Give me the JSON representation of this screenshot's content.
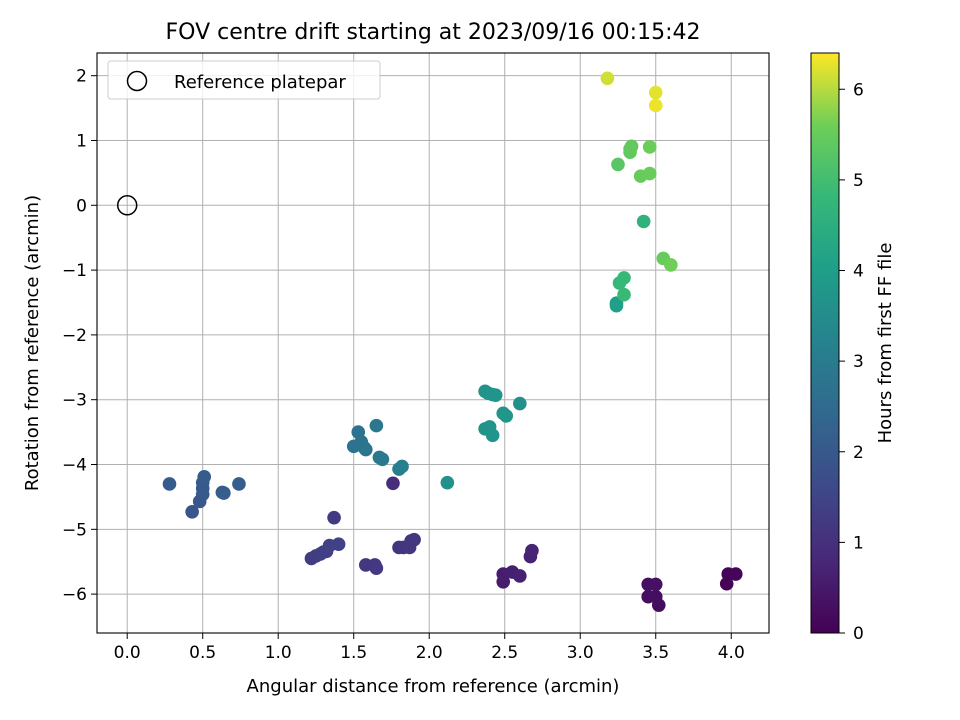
{
  "chart_data": {
    "type": "scatter",
    "title": "FOV centre drift starting at 2023/09/16 00:15:42",
    "xlabel": "Angular distance from reference (arcmin)",
    "ylabel": "Rotation from reference (arcmin)",
    "xlim": [
      -0.2,
      4.25
    ],
    "ylim": [
      -6.6,
      2.35
    ],
    "xticks": [
      "0.0",
      "0.5",
      "1.0",
      "1.5",
      "2.0",
      "2.5",
      "3.0",
      "3.5",
      "4.0"
    ],
    "yticks": [
      "2",
      "1",
      "0",
      "−1",
      "−2",
      "−3",
      "−4",
      "−5",
      "−6"
    ],
    "xtick_values": [
      0,
      0.5,
      1,
      1.5,
      2,
      2.5,
      3,
      3.5,
      4
    ],
    "ytick_values": [
      2,
      1,
      0,
      -1,
      -2,
      -3,
      -4,
      -5,
      -6
    ],
    "grid": true,
    "legend": {
      "placement": "upper-left",
      "entries": [
        "Reference platepar"
      ]
    },
    "reference_point": {
      "x": 0,
      "y": 0
    },
    "colorbar": {
      "label": "Hours from first FF file",
      "range": [
        0,
        6.4
      ],
      "ticks": [
        "0",
        "1",
        "2",
        "3",
        "4",
        "5",
        "6"
      ],
      "tick_values": [
        0,
        1,
        2,
        3,
        4,
        5,
        6
      ],
      "colormap": "viridis"
    },
    "points": [
      {
        "x": 3.97,
        "y": -5.84,
        "h": 0.05
      },
      {
        "x": 3.98,
        "y": -5.69,
        "h": 0.08
      },
      {
        "x": 4.03,
        "y": -5.69,
        "h": 0.1
      },
      {
        "x": 3.52,
        "y": -6.17,
        "h": 0.2
      },
      {
        "x": 3.45,
        "y": -6.04,
        "h": 0.25
      },
      {
        "x": 3.5,
        "y": -6.04,
        "h": 0.28
      },
      {
        "x": 3.45,
        "y": -5.85,
        "h": 0.3
      },
      {
        "x": 3.5,
        "y": -5.85,
        "h": 0.32
      },
      {
        "x": 2.49,
        "y": -5.81,
        "h": 0.55
      },
      {
        "x": 2.49,
        "y": -5.69,
        "h": 0.6
      },
      {
        "x": 2.55,
        "y": -5.66,
        "h": 0.62
      },
      {
        "x": 2.6,
        "y": -5.72,
        "h": 0.65
      },
      {
        "x": 2.67,
        "y": -5.42,
        "h": 0.7
      },
      {
        "x": 2.68,
        "y": -5.33,
        "h": 0.72
      },
      {
        "x": 1.76,
        "y": -4.29,
        "h": 0.95
      },
      {
        "x": 1.8,
        "y": -5.28,
        "h": 1.1
      },
      {
        "x": 1.83,
        "y": -5.28,
        "h": 1.12
      },
      {
        "x": 1.87,
        "y": -5.28,
        "h": 1.14
      },
      {
        "x": 1.88,
        "y": -5.18,
        "h": 1.16
      },
      {
        "x": 1.9,
        "y": -5.16,
        "h": 1.18
      },
      {
        "x": 1.58,
        "y": -5.55,
        "h": 1.15
      },
      {
        "x": 1.64,
        "y": -5.55,
        "h": 1.18
      },
      {
        "x": 1.65,
        "y": -5.6,
        "h": 1.2
      },
      {
        "x": 1.37,
        "y": -4.82,
        "h": 1.25
      },
      {
        "x": 1.22,
        "y": -5.45,
        "h": 1.3
      },
      {
        "x": 1.25,
        "y": -5.41,
        "h": 1.32
      },
      {
        "x": 1.28,
        "y": -5.38,
        "h": 1.34
      },
      {
        "x": 1.3,
        "y": -5.35,
        "h": 1.36
      },
      {
        "x": 1.32,
        "y": -5.34,
        "h": 1.38
      },
      {
        "x": 1.34,
        "y": -5.25,
        "h": 1.4
      },
      {
        "x": 1.4,
        "y": -5.23,
        "h": 1.42
      },
      {
        "x": 0.28,
        "y": -4.3,
        "h": 2.1
      },
      {
        "x": 0.43,
        "y": -4.73,
        "h": 1.9
      },
      {
        "x": 0.48,
        "y": -4.57,
        "h": 1.95
      },
      {
        "x": 0.5,
        "y": -4.46,
        "h": 2.0
      },
      {
        "x": 0.5,
        "y": -4.37,
        "h": 2.02
      },
      {
        "x": 0.5,
        "y": -4.28,
        "h": 2.05
      },
      {
        "x": 0.51,
        "y": -4.19,
        "h": 2.08
      },
      {
        "x": 0.63,
        "y": -4.43,
        "h": 2.1
      },
      {
        "x": 0.64,
        "y": -4.44,
        "h": 2.12
      },
      {
        "x": 0.74,
        "y": -4.3,
        "h": 2.15
      },
      {
        "x": 1.5,
        "y": -3.72,
        "h": 2.7
      },
      {
        "x": 1.53,
        "y": -3.5,
        "h": 2.72
      },
      {
        "x": 1.55,
        "y": -3.65,
        "h": 2.75
      },
      {
        "x": 1.57,
        "y": -3.74,
        "h": 2.78
      },
      {
        "x": 1.58,
        "y": -3.77,
        "h": 2.8
      },
      {
        "x": 1.65,
        "y": -3.4,
        "h": 2.85
      },
      {
        "x": 1.67,
        "y": -3.89,
        "h": 2.9
      },
      {
        "x": 1.69,
        "y": -3.92,
        "h": 2.92
      },
      {
        "x": 1.8,
        "y": -4.07,
        "h": 3.1
      },
      {
        "x": 1.82,
        "y": -4.03,
        "h": 3.15
      },
      {
        "x": 2.12,
        "y": -4.28,
        "h": 3.6
      },
      {
        "x": 2.37,
        "y": -2.87,
        "h": 3.65
      },
      {
        "x": 2.39,
        "y": -2.9,
        "h": 3.68
      },
      {
        "x": 2.42,
        "y": -2.92,
        "h": 3.7
      },
      {
        "x": 2.44,
        "y": -2.93,
        "h": 3.72
      },
      {
        "x": 2.37,
        "y": -3.45,
        "h": 3.65
      },
      {
        "x": 2.4,
        "y": -3.42,
        "h": 3.7
      },
      {
        "x": 2.42,
        "y": -3.55,
        "h": 3.72
      },
      {
        "x": 2.49,
        "y": -3.21,
        "h": 3.75
      },
      {
        "x": 2.51,
        "y": -3.25,
        "h": 3.78
      },
      {
        "x": 2.6,
        "y": -3.06,
        "h": 3.6
      },
      {
        "x": 3.24,
        "y": -1.51,
        "h": 4.0
      },
      {
        "x": 3.24,
        "y": -1.55,
        "h": 4.02
      },
      {
        "x": 3.42,
        "y": -0.25,
        "h": 4.65
      },
      {
        "x": 3.26,
        "y": -1.2,
        "h": 4.8
      },
      {
        "x": 3.29,
        "y": -1.12,
        "h": 4.82
      },
      {
        "x": 3.29,
        "y": -1.38,
        "h": 4.85
      },
      {
        "x": 3.55,
        "y": -0.82,
        "h": 5.5
      },
      {
        "x": 3.6,
        "y": -0.92,
        "h": 5.6
      },
      {
        "x": 3.25,
        "y": 0.63,
        "h": 5.3
      },
      {
        "x": 3.33,
        "y": 0.82,
        "h": 5.4
      },
      {
        "x": 3.33,
        "y": 0.87,
        "h": 5.42
      },
      {
        "x": 3.34,
        "y": 0.91,
        "h": 5.44
      },
      {
        "x": 3.4,
        "y": 0.45,
        "h": 5.5
      },
      {
        "x": 3.46,
        "y": 0.49,
        "h": 5.52
      },
      {
        "x": 3.46,
        "y": 0.9,
        "h": 5.55
      },
      {
        "x": 3.18,
        "y": 1.96,
        "h": 6.15
      },
      {
        "x": 3.5,
        "y": 1.74,
        "h": 6.25
      },
      {
        "x": 3.5,
        "y": 1.54,
        "h": 6.3
      }
    ]
  }
}
